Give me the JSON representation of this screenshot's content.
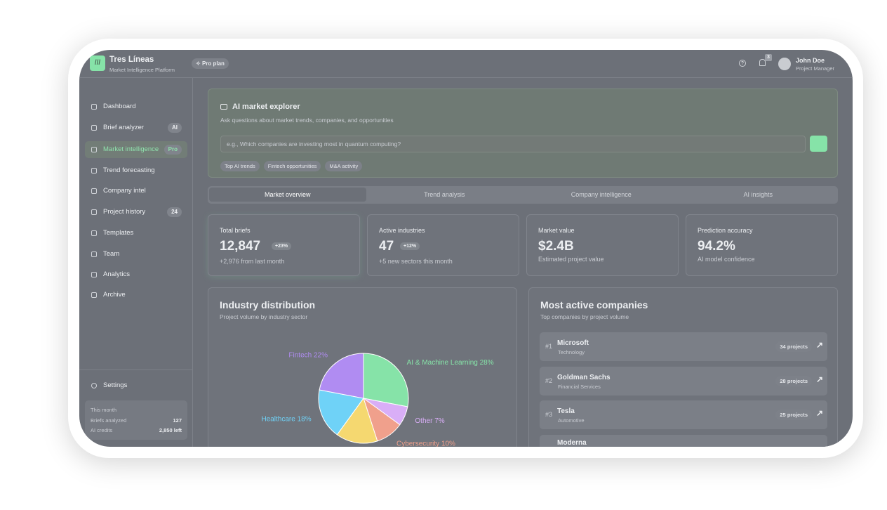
{
  "app": {
    "name": "Tres Líneas",
    "tagline": "Market Intelligence Platform",
    "plan": "Pro plan",
    "notifications": "3",
    "user_name": "John Doe",
    "user_role": "Project Manager"
  },
  "sidebar": {
    "items": [
      {
        "label": "Dashboard"
      },
      {
        "label": "Brief analyzer",
        "badge": "AI"
      },
      {
        "label": "Market intelligence",
        "badge": "Pro"
      },
      {
        "label": "Trend forecasting"
      },
      {
        "label": "Company intel"
      },
      {
        "label": "Project history",
        "badge": "24"
      },
      {
        "label": "Templates"
      },
      {
        "label": "Team"
      },
      {
        "label": "Analytics"
      },
      {
        "label": "Archive"
      }
    ],
    "settings": "Settings",
    "usage": {
      "title": "This month",
      "rows": [
        [
          "Briefs analyzed",
          "127"
        ],
        [
          "AI credits",
          "2,850 left"
        ]
      ]
    }
  },
  "explorer": {
    "title": "AI market explorer",
    "subtitle": "Ask questions about market trends, companies, and opportunities",
    "placeholder": "e.g., Which companies are investing most in quantum computing?",
    "chips": [
      "Top AI trends",
      "Fintech opportunities",
      "M&A activity"
    ]
  },
  "tabs": [
    "Market overview",
    "Trend analysis",
    "Company intelligence",
    "AI insights"
  ],
  "stats": [
    {
      "label": "Total briefs",
      "value": "12,847",
      "delta": "+23%",
      "note": "+2,976 from last month"
    },
    {
      "label": "Active industries",
      "value": "47",
      "delta": "+12%",
      "note": "+5 new sectors this month"
    },
    {
      "label": "Market value",
      "value": "$2.4B",
      "note": "Estimated project value"
    },
    {
      "label": "Prediction accuracy",
      "value": "94.2%",
      "note": "AI model confidence"
    }
  ],
  "chart_data": {
    "type": "pie",
    "title": "Industry distribution",
    "subtitle": "Project volume by industry sector",
    "categories": [
      "AI & Machine Learning",
      "Other",
      "Cybersecurity",
      null,
      "Healthcare",
      "Fintech"
    ],
    "values": [
      28,
      7,
      10,
      15,
      18,
      22
    ],
    "value_labels": [
      "28%",
      "7%",
      "10%",
      null,
      "18%",
      "22%"
    ],
    "colors": [
      "#86e3a8",
      "#d9aef7",
      "#f0a08c",
      "#f5d870",
      "#6fd2f7",
      "#b08cf2"
    ]
  },
  "companies": {
    "title": "Most active companies",
    "subtitle": "Top companies by project volume",
    "rows": [
      {
        "rank": "#1",
        "name": "Microsoft",
        "sector": "Technology",
        "projects": "34 projects"
      },
      {
        "rank": "#2",
        "name": "Goldman Sachs",
        "sector": "Financial Services",
        "projects": "28 projects"
      },
      {
        "rank": "#3",
        "name": "Tesla",
        "sector": "Automotive",
        "projects": "25 projects"
      },
      {
        "name": "Moderna"
      }
    ]
  }
}
